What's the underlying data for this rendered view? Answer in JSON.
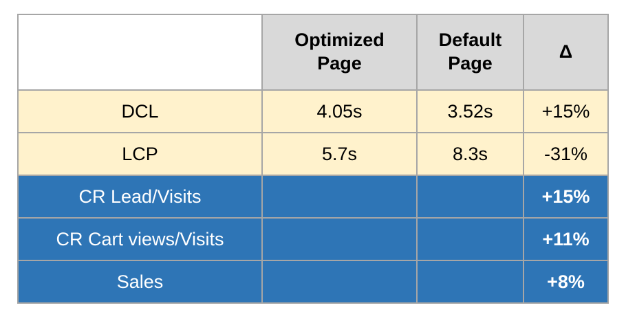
{
  "chart_data": {
    "type": "table",
    "columns": [
      "",
      "Optimized Page",
      "Default Page",
      "Δ"
    ],
    "rows": [
      [
        "DCL",
        "4.05s",
        "3.52s",
        "+15%"
      ],
      [
        "LCP",
        "5.7s",
        "8.3s",
        "-31%"
      ],
      [
        "CR Lead/Visits",
        "",
        "",
        "+15%"
      ],
      [
        "CR Cart views/Visits",
        "",
        "",
        "+11%"
      ],
      [
        "Sales",
        "",
        "",
        "+8%"
      ]
    ],
    "layout_hints": {
      "header_fill": "gray",
      "timing_rows_fill": "cream",
      "conversion_rows_fill": "blue",
      "grid": "on"
    }
  },
  "header": {
    "corner": "",
    "optimized": "Optimized\nPage",
    "default": "Default\nPage",
    "delta": "Δ"
  },
  "rows": [
    {
      "label": "DCL",
      "optimized": "4.05s",
      "default": "3.52s",
      "delta": "+15%"
    },
    {
      "label": "LCP",
      "optimized": "5.7s",
      "default": "8.3s",
      "delta": "-31%"
    },
    {
      "label": "CR Lead/Visits",
      "optimized": "",
      "default": "",
      "delta": "+15%"
    },
    {
      "label": "CR Cart views/Visits",
      "optimized": "",
      "default": "",
      "delta": "+11%"
    },
    {
      "label": "Sales",
      "optimized": "",
      "default": "",
      "delta": "+8%"
    }
  ],
  "colors": {
    "page_bg": "#ffffff",
    "header_bg": "#d9d9d9",
    "metric_row_bg": "#fff2cc",
    "highlight_row_bg": "#2e75b6",
    "border": "#a6a6a6",
    "text_dark": "#000000",
    "text_light": "#ffffff"
  }
}
